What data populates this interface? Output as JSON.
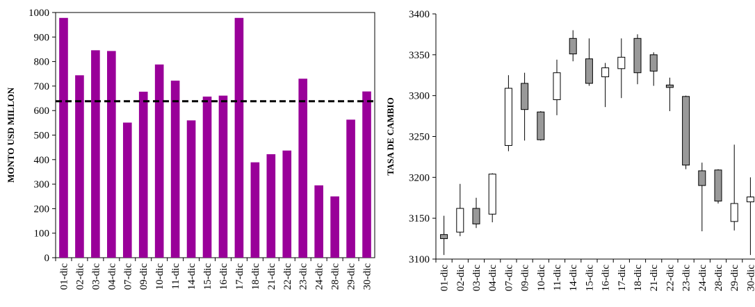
{
  "chart_data": [
    {
      "type": "bar",
      "ylabel": "MONTO USD MILLON",
      "xlabel": "",
      "ylim": [
        0,
        1000
      ],
      "yticks": [
        0,
        100,
        200,
        300,
        400,
        500,
        600,
        700,
        800,
        900,
        1000
      ],
      "categories": [
        "01-dic",
        "02-dic",
        "03-dic",
        "04-dic",
        "07-dic",
        "09-dic",
        "10-dic",
        "11-dic",
        "14-dic",
        "15-dic",
        "16-dic",
        "17-dic",
        "18-dic",
        "21-dic",
        "22-dic",
        "23-dic",
        "24-dic",
        "28-dic",
        "29-dic",
        "30-dic"
      ],
      "values": [
        978,
        744,
        846,
        843,
        551,
        677,
        788,
        722,
        560,
        657,
        661,
        978,
        389,
        422,
        437,
        730,
        295,
        250,
        563,
        678
      ],
      "reference_line": 638,
      "bar_color": "#990099",
      "line_color": "#000000",
      "grid": false
    },
    {
      "type": "candlestick",
      "ylabel": "TASA DE CAMBIO",
      "xlabel": "",
      "ylim": [
        3100,
        3400
      ],
      "yticks": [
        3100,
        3150,
        3200,
        3250,
        3300,
        3350,
        3400
      ],
      "categories": [
        "01-dic",
        "02-dic",
        "03-dic",
        "04-dic",
        "07-dic",
        "09-dic",
        "10-dic",
        "11-dic",
        "14-dic",
        "15-dic",
        "16-dic",
        "17-dic",
        "18-dic",
        "21-dic",
        "22-dic",
        "23-dic",
        "24-dic",
        "28-dic",
        "29-dic",
        "30-dic"
      ],
      "open": [
        3130,
        3133,
        3162,
        3155,
        3239,
        3315,
        3280,
        3295,
        3370,
        3345,
        3323,
        3333,
        3370,
        3350,
        3313,
        3299,
        3208,
        3209,
        3146,
        3170
      ],
      "high": [
        3153,
        3192,
        3175,
        3205,
        3325,
        3328,
        3281,
        3344,
        3380,
        3370,
        3340,
        3370,
        3375,
        3353,
        3322,
        3300,
        3218,
        3210,
        3240,
        3200
      ],
      "low": [
        3105,
        3128,
        3138,
        3145,
        3232,
        3245,
        3245,
        3276,
        3342,
        3312,
        3286,
        3297,
        3314,
        3312,
        3281,
        3210,
        3134,
        3168,
        3135,
        3105
      ],
      "close": [
        3125,
        3162,
        3143,
        3204,
        3309,
        3283,
        3246,
        3328,
        3351,
        3315,
        3334,
        3347,
        3328,
        3330,
        3310,
        3215,
        3190,
        3171,
        3168,
        3176
      ],
      "up_color": "#ffffff",
      "down_color": "#999999",
      "grid": false
    }
  ]
}
